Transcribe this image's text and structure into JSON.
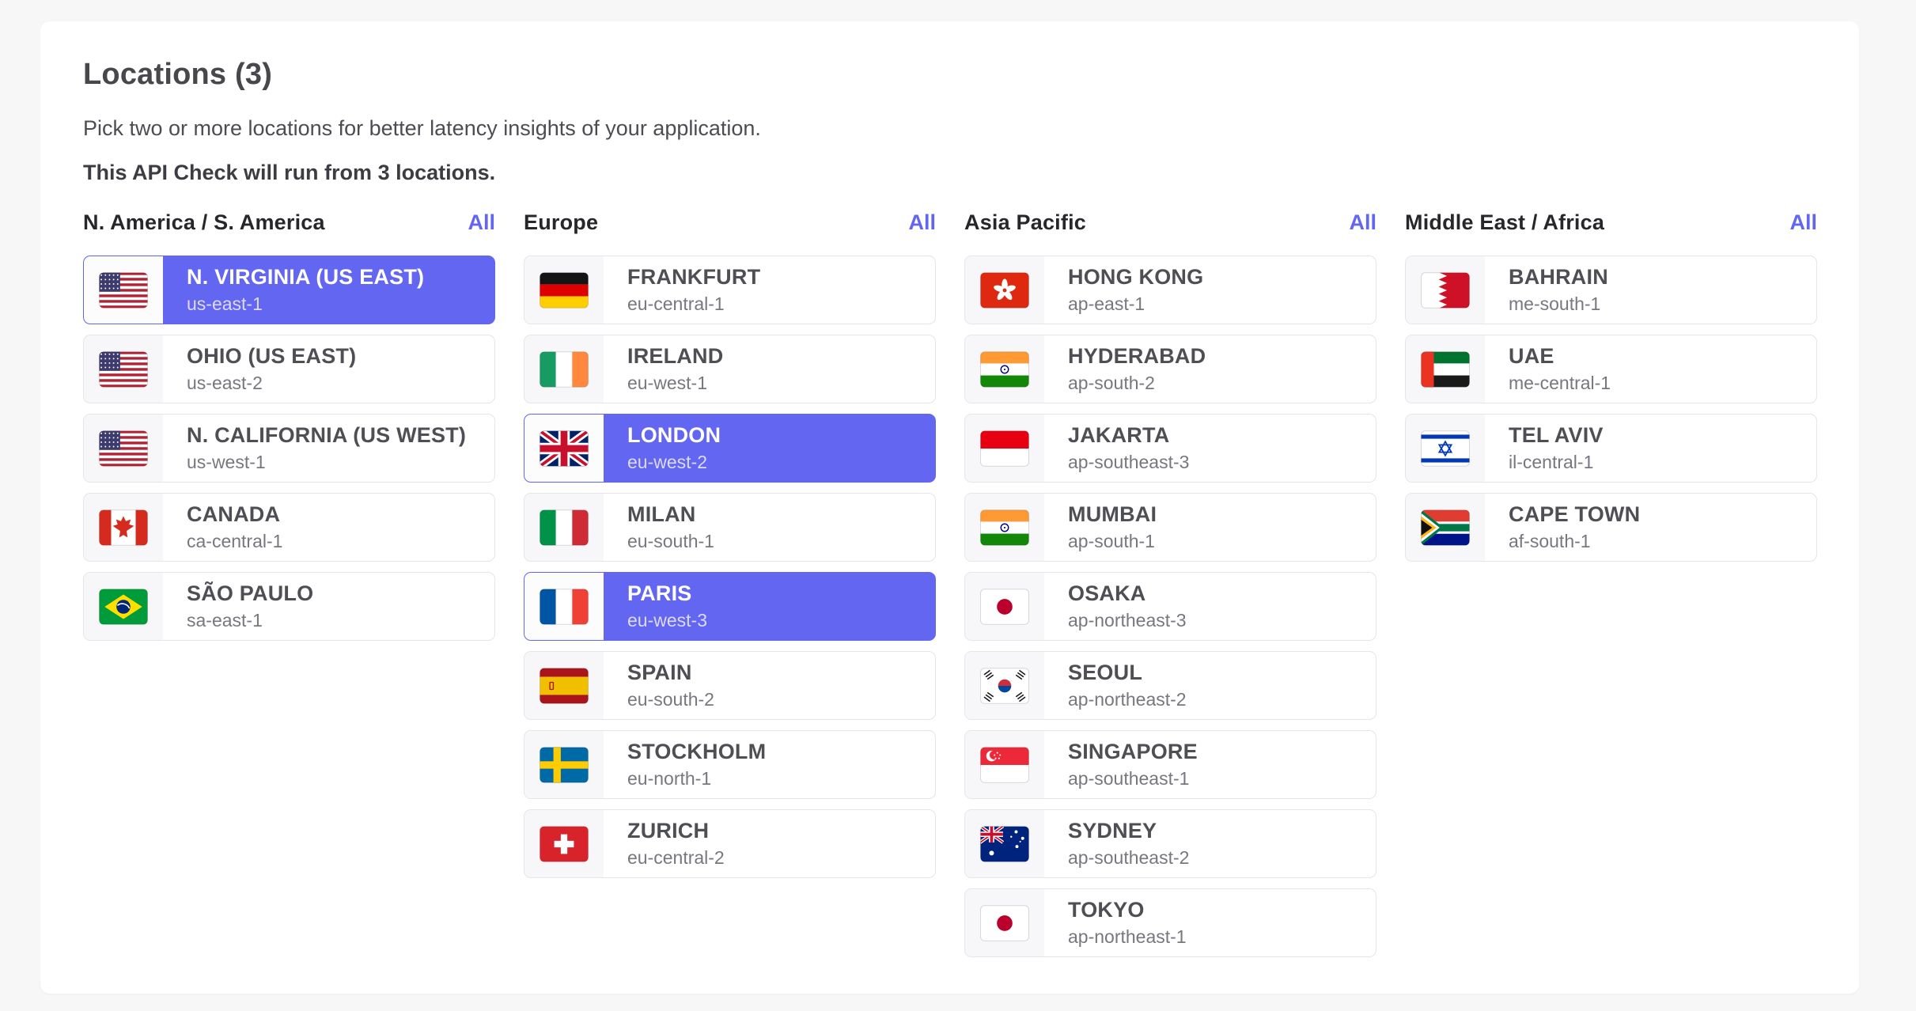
{
  "header": {
    "title": "Locations (3)",
    "subtitle": "Pick two or more locations for better latency insights of your application."
  },
  "run_line": {
    "prefix": "This API Check will run from ",
    "count": "3",
    "suffix": " locations."
  },
  "labels": {
    "all": "All"
  },
  "colors": {
    "accent": "#6366f1",
    "selected_card_bg": "#6366f1",
    "card_border": "#e5e5ea",
    "page_bg": "#f7f7f8"
  },
  "columns": [
    {
      "label": "N. America / S. America",
      "locations": [
        {
          "name": "N. VIRGINIA (US EAST)",
          "region": "us-east-1",
          "flag": "us-flag",
          "selected": true
        },
        {
          "name": "OHIO (US EAST)",
          "region": "us-east-2",
          "flag": "us-flag",
          "selected": false
        },
        {
          "name": "N. CALIFORNIA (US WEST)",
          "region": "us-west-1",
          "flag": "us-flag",
          "selected": false
        },
        {
          "name": "CANADA",
          "region": "ca-central-1",
          "flag": "canada-flag",
          "selected": false
        },
        {
          "name": "SÃO PAULO",
          "region": "sa-east-1",
          "flag": "brazil-flag",
          "selected": false
        }
      ]
    },
    {
      "label": "Europe",
      "locations": [
        {
          "name": "FRANKFURT",
          "region": "eu-central-1",
          "flag": "germany-flag",
          "selected": false
        },
        {
          "name": "IRELAND",
          "region": "eu-west-1",
          "flag": "ireland-flag",
          "selected": false
        },
        {
          "name": "LONDON",
          "region": "eu-west-2",
          "flag": "uk-flag",
          "selected": true
        },
        {
          "name": "MILAN",
          "region": "eu-south-1",
          "flag": "italy-flag",
          "selected": false
        },
        {
          "name": "PARIS",
          "region": "eu-west-3",
          "flag": "france-flag",
          "selected": true
        },
        {
          "name": "SPAIN",
          "region": "eu-south-2",
          "flag": "spain-flag",
          "selected": false
        },
        {
          "name": "STOCKHOLM",
          "region": "eu-north-1",
          "flag": "sweden-flag",
          "selected": false
        },
        {
          "name": "ZURICH",
          "region": "eu-central-2",
          "flag": "switzerland-flag",
          "selected": false
        }
      ]
    },
    {
      "label": "Asia Pacific",
      "locations": [
        {
          "name": "HONG KONG",
          "region": "ap-east-1",
          "flag": "hong-kong-flag",
          "selected": false
        },
        {
          "name": "HYDERABAD",
          "region": "ap-south-2",
          "flag": "india-flag",
          "selected": false
        },
        {
          "name": "JAKARTA",
          "region": "ap-southeast-3",
          "flag": "indonesia-flag",
          "selected": false
        },
        {
          "name": "MUMBAI",
          "region": "ap-south-1",
          "flag": "india-flag",
          "selected": false
        },
        {
          "name": "OSAKA",
          "region": "ap-northeast-3",
          "flag": "japan-flag",
          "selected": false
        },
        {
          "name": "SEOUL",
          "region": "ap-northeast-2",
          "flag": "south-korea-flag",
          "selected": false
        },
        {
          "name": "SINGAPORE",
          "region": "ap-southeast-1",
          "flag": "singapore-flag",
          "selected": false
        },
        {
          "name": "SYDNEY",
          "region": "ap-southeast-2",
          "flag": "australia-flag",
          "selected": false
        },
        {
          "name": "TOKYO",
          "region": "ap-northeast-1",
          "flag": "japan-flag",
          "selected": false
        }
      ]
    },
    {
      "label": "Middle East / Africa",
      "locations": [
        {
          "name": "BAHRAIN",
          "region": "me-south-1",
          "flag": "bahrain-flag",
          "selected": false
        },
        {
          "name": "UAE",
          "region": "me-central-1",
          "flag": "uae-flag",
          "selected": false
        },
        {
          "name": "TEL AVIV",
          "region": "il-central-1",
          "flag": "israel-flag",
          "selected": false
        },
        {
          "name": "CAPE TOWN",
          "region": "af-south-1",
          "flag": "south-africa-flag",
          "selected": false
        }
      ]
    }
  ]
}
